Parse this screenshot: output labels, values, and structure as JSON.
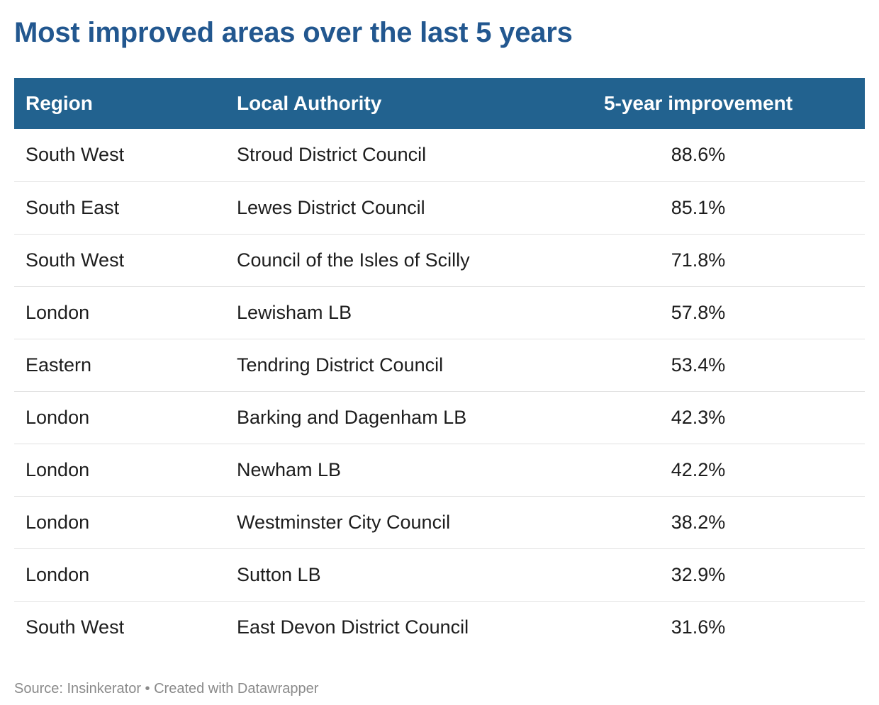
{
  "title": "Most improved areas over the last 5 years",
  "table": {
    "headers": {
      "region": "Region",
      "authority": "Local Authority",
      "improvement": "5-year improvement"
    },
    "rows": [
      {
        "region": "South West",
        "authority": "Stroud District Council",
        "improvement": "88.6%"
      },
      {
        "region": "South East",
        "authority": "Lewes District Council",
        "improvement": "85.1%"
      },
      {
        "region": "South West",
        "authority": "Council of the Isles of Scilly",
        "improvement": "71.8%"
      },
      {
        "region": "London",
        "authority": "Lewisham LB",
        "improvement": "57.8%"
      },
      {
        "region": "Eastern",
        "authority": "Tendring District Council",
        "improvement": "53.4%"
      },
      {
        "region": "London",
        "authority": "Barking and Dagenham LB",
        "improvement": "42.3%"
      },
      {
        "region": "London",
        "authority": "Newham LB",
        "improvement": "42.2%"
      },
      {
        "region": "London",
        "authority": "Westminster City Council",
        "improvement": "38.2%"
      },
      {
        "region": "London",
        "authority": "Sutton LB",
        "improvement": "32.9%"
      },
      {
        "region": "South West",
        "authority": "East Devon District Council",
        "improvement": "31.6%"
      }
    ]
  },
  "footer": {
    "source": "Source: Insinkerator • Created with Datawrapper"
  },
  "colors": {
    "title": "#22578f",
    "header_background": "#22628f",
    "header_text": "#ffffff",
    "row_divider": "#e2e2e2",
    "footer_text": "#8a8a8a"
  },
  "chart_data": {
    "type": "table",
    "title": "Most improved areas over the last 5 years",
    "columns": [
      "Region",
      "Local Authority",
      "5-year improvement"
    ],
    "rows": [
      [
        "South West",
        "Stroud District Council",
        "88.6%"
      ],
      [
        "South East",
        "Lewes District Council",
        "85.1%"
      ],
      [
        "South West",
        "Council of the Isles of Scilly",
        "71.8%"
      ],
      [
        "London",
        "Lewisham LB",
        "57.8%"
      ],
      [
        "Eastern",
        "Tendring District Council",
        "53.4%"
      ],
      [
        "London",
        "Barking and Dagenham LB",
        "42.3%"
      ],
      [
        "London",
        "Newham LB",
        "42.2%"
      ],
      [
        "London",
        "Westminster City Council",
        "38.2%"
      ],
      [
        "London",
        "Sutton LB",
        "32.9%"
      ],
      [
        "South West",
        "East Devon District Council",
        "31.6%"
      ]
    ],
    "source": "Source: Insinkerator • Created with Datawrapper"
  }
}
